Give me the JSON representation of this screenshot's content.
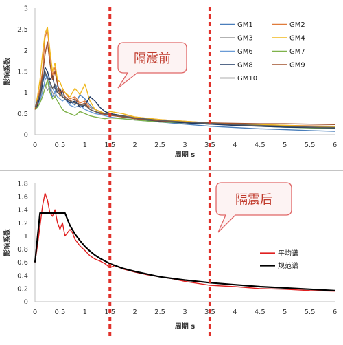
{
  "chart_data": [
    {
      "type": "line",
      "xlabel": "周期 s",
      "ylabel": "影响系数",
      "xlim": [
        0,
        6
      ],
      "ylim": [
        0,
        3
      ],
      "xticks": [
        "0",
        "0.5",
        "1",
        "1.5",
        "2",
        "2.5",
        "3",
        "3.5",
        "4",
        "4.5",
        "5",
        "5.5",
        "6"
      ],
      "yticks": [
        "0",
        "0.5",
        "1",
        "1.5",
        "2",
        "2.5",
        "3"
      ],
      "grid": false,
      "legend_position": "right",
      "annotation": "隔震前",
      "series": [
        {
          "name": "GM1",
          "color": "#4a7ebb",
          "x": [
            0,
            0.05,
            0.1,
            0.15,
            0.2,
            0.25,
            0.3,
            0.35,
            0.4,
            0.45,
            0.5,
            0.55,
            0.6,
            0.7,
            0.8,
            0.9,
            1,
            1.1,
            1.2,
            1.3,
            1.4,
            1.5,
            1.75,
            2,
            2.5,
            3,
            3.5,
            4,
            4.5,
            5,
            5.5,
            6
          ],
          "y": [
            0.65,
            0.75,
            0.9,
            1.2,
            1.45,
            1.3,
            1.1,
            0.9,
            1.0,
            1.2,
            0.95,
            1.05,
            0.85,
            0.8,
            0.7,
            0.95,
            0.85,
            0.7,
            0.6,
            0.55,
            0.5,
            0.48,
            0.42,
            0.38,
            0.3,
            0.25,
            0.2,
            0.17,
            0.14,
            0.12,
            0.1,
            0.08
          ]
        },
        {
          "name": "GM2",
          "color": "#e07b3a",
          "x": [
            0,
            0.05,
            0.1,
            0.15,
            0.2,
            0.25,
            0.3,
            0.35,
            0.4,
            0.45,
            0.5,
            0.55,
            0.6,
            0.7,
            0.8,
            0.9,
            1,
            1.1,
            1.2,
            1.3,
            1.4,
            1.5,
            1.75,
            2,
            2.5,
            3,
            3.5,
            4,
            4.5,
            5,
            5.5,
            6
          ],
          "y": [
            0.6,
            0.8,
            1.1,
            1.5,
            2.3,
            2.5,
            1.9,
            1.4,
            1.6,
            1.2,
            0.9,
            1.1,
            1.0,
            0.85,
            0.9,
            0.75,
            0.8,
            0.65,
            0.6,
            0.55,
            0.5,
            0.5,
            0.45,
            0.42,
            0.36,
            0.32,
            0.28,
            0.26,
            0.24,
            0.22,
            0.21,
            0.2
          ]
        },
        {
          "name": "GM3",
          "color": "#999999",
          "x": [
            0,
            0.05,
            0.1,
            0.15,
            0.2,
            0.25,
            0.3,
            0.35,
            0.4,
            0.45,
            0.5,
            0.55,
            0.6,
            0.7,
            0.8,
            0.9,
            1,
            1.1,
            1.2,
            1.3,
            1.4,
            1.5,
            1.75,
            2,
            2.5,
            3,
            3.5,
            4,
            4.5,
            5,
            5.5,
            6
          ],
          "y": [
            0.6,
            0.7,
            0.85,
            1.1,
            1.2,
            1.05,
            1.15,
            1.0,
            0.9,
            1.1,
            1.0,
            0.95,
            0.9,
            0.8,
            0.75,
            0.7,
            0.7,
            0.65,
            0.6,
            0.55,
            0.5,
            0.48,
            0.45,
            0.4,
            0.34,
            0.3,
            0.27,
            0.25,
            0.22,
            0.2,
            0.19,
            0.18
          ]
        },
        {
          "name": "GM4",
          "color": "#f0b81e",
          "x": [
            0,
            0.05,
            0.1,
            0.15,
            0.2,
            0.25,
            0.3,
            0.35,
            0.4,
            0.45,
            0.5,
            0.55,
            0.6,
            0.7,
            0.8,
            0.9,
            1,
            1.1,
            1.2,
            1.3,
            1.4,
            1.5,
            1.75,
            2,
            2.5,
            3,
            3.5,
            4,
            4.5,
            5,
            5.5,
            6
          ],
          "y": [
            0.6,
            0.9,
            1.3,
            1.9,
            2.4,
            2.55,
            2.0,
            1.5,
            1.7,
            1.3,
            1.25,
            1.1,
            1.0,
            0.9,
            1.1,
            0.95,
            1.2,
            0.8,
            0.6,
            0.55,
            0.5,
            0.55,
            0.5,
            0.42,
            0.36,
            0.32,
            0.28,
            0.26,
            0.24,
            0.22,
            0.2,
            0.19
          ]
        },
        {
          "name": "GM6",
          "color": "#6a9bd6",
          "x": [
            0,
            0.05,
            0.1,
            0.15,
            0.2,
            0.25,
            0.3,
            0.35,
            0.4,
            0.45,
            0.5,
            0.55,
            0.6,
            0.7,
            0.8,
            0.9,
            1,
            1.1,
            1.2,
            1.3,
            1.4,
            1.5,
            1.75,
            2,
            2.5,
            3,
            3.5,
            4,
            4.5,
            5,
            5.5,
            6
          ],
          "y": [
            0.6,
            0.7,
            0.8,
            1.0,
            1.3,
            1.4,
            1.2,
            1.1,
            1.0,
            0.9,
            0.85,
            0.8,
            0.85,
            0.7,
            0.65,
            0.7,
            0.6,
            0.55,
            0.5,
            0.48,
            0.45,
            0.42,
            0.38,
            0.35,
            0.3,
            0.28,
            0.25,
            0.23,
            0.21,
            0.19,
            0.18,
            0.17
          ]
        },
        {
          "name": "GM7",
          "color": "#7fb24a",
          "x": [
            0,
            0.05,
            0.1,
            0.15,
            0.2,
            0.25,
            0.3,
            0.35,
            0.4,
            0.45,
            0.5,
            0.55,
            0.6,
            0.7,
            0.8,
            0.9,
            1,
            1.1,
            1.2,
            1.3,
            1.4,
            1.5,
            1.75,
            2,
            2.5,
            3,
            3.5,
            4,
            4.5,
            5,
            5.5,
            6
          ],
          "y": [
            0.6,
            0.65,
            0.75,
            0.9,
            1.1,
            1.3,
            1.0,
            0.85,
            0.9,
            0.8,
            0.7,
            0.6,
            0.55,
            0.5,
            0.45,
            0.55,
            0.5,
            0.45,
            0.42,
            0.4,
            0.38,
            0.4,
            0.38,
            0.35,
            0.3,
            0.28,
            0.25,
            0.23,
            0.2,
            0.18,
            0.16,
            0.15
          ]
        },
        {
          "name": "GM8",
          "color": "#1f3864",
          "x": [
            0,
            0.05,
            0.1,
            0.15,
            0.2,
            0.25,
            0.3,
            0.35,
            0.4,
            0.45,
            0.5,
            0.55,
            0.6,
            0.7,
            0.8,
            0.9,
            1,
            1.1,
            1.2,
            1.3,
            1.4,
            1.5,
            1.75,
            2,
            2.5,
            3,
            3.5,
            4,
            4.5,
            5,
            5.5,
            6
          ],
          "y": [
            0.6,
            0.7,
            0.9,
            1.2,
            1.6,
            1.5,
            1.3,
            1.4,
            1.1,
            1.0,
            1.1,
            0.9,
            0.85,
            0.75,
            0.8,
            0.65,
            0.7,
            0.9,
            0.8,
            0.65,
            0.55,
            0.5,
            0.45,
            0.38,
            0.32,
            0.28,
            0.25,
            0.22,
            0.2,
            0.18,
            0.17,
            0.16
          ]
        },
        {
          "name": "GM9",
          "color": "#a0522d",
          "x": [
            0,
            0.05,
            0.1,
            0.15,
            0.2,
            0.25,
            0.3,
            0.35,
            0.4,
            0.45,
            0.5,
            0.55,
            0.6,
            0.7,
            0.8,
            0.9,
            1,
            1.1,
            1.2,
            1.3,
            1.4,
            1.5,
            1.75,
            2,
            2.5,
            3,
            3.5,
            4,
            4.5,
            5,
            5.5,
            6
          ],
          "y": [
            0.6,
            0.75,
            1.0,
            1.4,
            1.9,
            2.2,
            1.7,
            1.3,
            1.5,
            1.2,
            1.0,
            1.05,
            0.9,
            0.8,
            0.85,
            0.7,
            0.75,
            0.6,
            0.55,
            0.5,
            0.48,
            0.46,
            0.42,
            0.38,
            0.33,
            0.3,
            0.28,
            0.27,
            0.26,
            0.26,
            0.25,
            0.24
          ]
        },
        {
          "name": "GM10",
          "color": "#5e5e5e",
          "x": [
            0,
            0.05,
            0.1,
            0.15,
            0.2,
            0.25,
            0.3,
            0.35,
            0.4,
            0.45,
            0.5,
            0.55,
            0.6,
            0.7,
            0.8,
            0.9,
            1,
            1.1,
            1.2,
            1.3,
            1.4,
            1.5,
            1.75,
            2,
            2.5,
            3,
            3.5,
            4,
            4.5,
            5,
            5.5,
            6
          ],
          "y": [
            0.65,
            0.8,
            0.95,
            1.3,
            1.5,
            1.35,
            1.25,
            1.1,
            1.2,
            1.0,
            0.95,
            0.9,
            0.85,
            0.8,
            0.75,
            0.7,
            0.7,
            0.6,
            0.55,
            0.52,
            0.5,
            0.48,
            0.44,
            0.4,
            0.34,
            0.3,
            0.27,
            0.24,
            0.22,
            0.2,
            0.18,
            0.17
          ]
        }
      ]
    },
    {
      "type": "line",
      "xlabel": "周期 s",
      "ylabel": "影响系数",
      "xlim": [
        0,
        6
      ],
      "ylim": [
        0,
        1.8
      ],
      "xticks": [
        "0",
        "0.5",
        "1",
        "1.5",
        "2",
        "2.5",
        "3",
        "3.5",
        "4",
        "4.5",
        "5",
        "5.5",
        "6"
      ],
      "yticks": [
        "0",
        "0.2",
        "0.4",
        "0.6",
        "0.8",
        "1",
        "1.2",
        "1.4",
        "1.6",
        "1.8"
      ],
      "grid": false,
      "legend_position": "right",
      "annotation": "隔震后",
      "series": [
        {
          "name": "平均谱",
          "color": "#e02020",
          "x": [
            0,
            0.05,
            0.1,
            0.15,
            0.2,
            0.25,
            0.3,
            0.35,
            0.4,
            0.45,
            0.5,
            0.55,
            0.6,
            0.65,
            0.7,
            0.75,
            0.8,
            0.9,
            1,
            1.1,
            1.2,
            1.3,
            1.4,
            1.5,
            1.6,
            1.75,
            2,
            2.25,
            2.5,
            2.75,
            3,
            3.25,
            3.5,
            4,
            4.5,
            5,
            5.5,
            6
          ],
          "y": [
            0.6,
            0.85,
            1.15,
            1.45,
            1.65,
            1.55,
            1.35,
            1.3,
            1.4,
            1.2,
            1.1,
            1.2,
            1.0,
            1.05,
            1.1,
            1.05,
            0.95,
            0.85,
            0.78,
            0.7,
            0.65,
            0.62,
            0.58,
            0.52,
            0.55,
            0.5,
            0.45,
            0.41,
            0.38,
            0.35,
            0.31,
            0.28,
            0.25,
            0.23,
            0.2,
            0.19,
            0.17,
            0.16
          ]
        },
        {
          "name": "规范谱",
          "color": "#000000",
          "x": [
            0,
            0.1,
            0.6,
            0.7,
            0.8,
            0.9,
            1,
            1.1,
            1.2,
            1.3,
            1.4,
            1.5,
            1.75,
            2,
            2.5,
            3,
            3.5,
            4,
            4.5,
            5,
            5.5,
            6
          ],
          "y": [
            0.6,
            1.35,
            1.35,
            1.16,
            1.03,
            0.93,
            0.84,
            0.77,
            0.71,
            0.66,
            0.62,
            0.58,
            0.51,
            0.46,
            0.38,
            0.33,
            0.29,
            0.26,
            0.23,
            0.21,
            0.19,
            0.17
          ]
        }
      ]
    }
  ]
}
